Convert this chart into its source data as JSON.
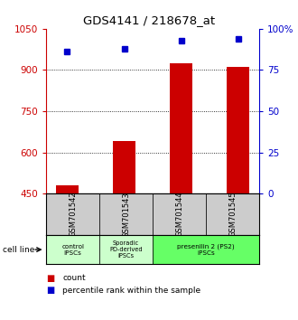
{
  "title": "GDS4141 / 218678_at",
  "samples": [
    "GSM701542",
    "GSM701543",
    "GSM701544",
    "GSM701545"
  ],
  "counts": [
    480,
    640,
    925,
    912
  ],
  "percentiles": [
    86,
    88,
    93,
    94
  ],
  "ylim_left": [
    450,
    1050
  ],
  "ylim_right": [
    0,
    100
  ],
  "yticks_left": [
    450,
    600,
    750,
    900,
    1050
  ],
  "yticks_right": [
    0,
    25,
    50,
    75,
    100
  ],
  "bar_color": "#cc0000",
  "dot_color": "#0000cc",
  "bar_bottom": 450,
  "cell_line_label": "cell line",
  "legend_count_label": "count",
  "legend_percentile_label": "percentile rank within the sample",
  "tick_label_color_left": "#cc0000",
  "tick_label_color_right": "#0000cc",
  "title_color": "#000000",
  "group1_label": "control\nIPSCs",
  "group2_label": "Sporadic\nPD-derived\niPSCs",
  "group3_label": "presenilin 2 (PS2)\niPSCs",
  "group_light_green": "#ccffcc",
  "group_bright_green": "#66ff66",
  "sample_box_color": "#cccccc"
}
